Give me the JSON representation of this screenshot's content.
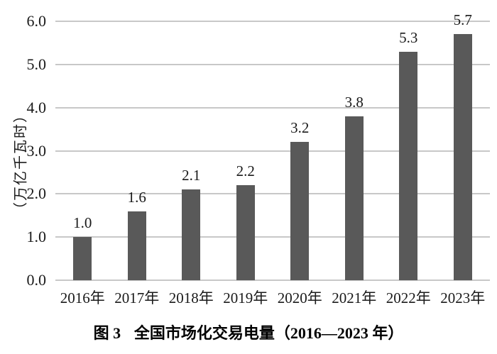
{
  "caption": {
    "prefix": "图 3",
    "title": "全国市场化交易电量（2016—2023 年）"
  },
  "chart_data": {
    "type": "bar",
    "title": "图 3 全国市场化交易电量（2016—2023 年）",
    "ylabel": "（万亿千瓦时）",
    "xlabel": "",
    "categories": [
      "2016年",
      "2017年",
      "2018年",
      "2019年",
      "2020年",
      "2021年",
      "2022年",
      "2023年"
    ],
    "values": [
      1.0,
      1.6,
      2.1,
      2.2,
      3.2,
      3.8,
      5.3,
      5.7
    ],
    "value_labels": [
      "1.0",
      "1.6",
      "2.1",
      "2.2",
      "3.2",
      "3.8",
      "5.3",
      "5.7"
    ],
    "yticks": [
      0.0,
      1.0,
      2.0,
      3.0,
      4.0,
      5.0,
      6.0
    ],
    "ytick_labels": [
      "0.0",
      "1.0",
      "2.0",
      "3.0",
      "4.0",
      "5.0",
      "6.0"
    ],
    "ylim": [
      0,
      6
    ],
    "grid": "horizontal",
    "legend": "none",
    "colors": {
      "bar": "#595959",
      "gridline": "#c8c8c8",
      "text": "#1a1a1a"
    }
  }
}
